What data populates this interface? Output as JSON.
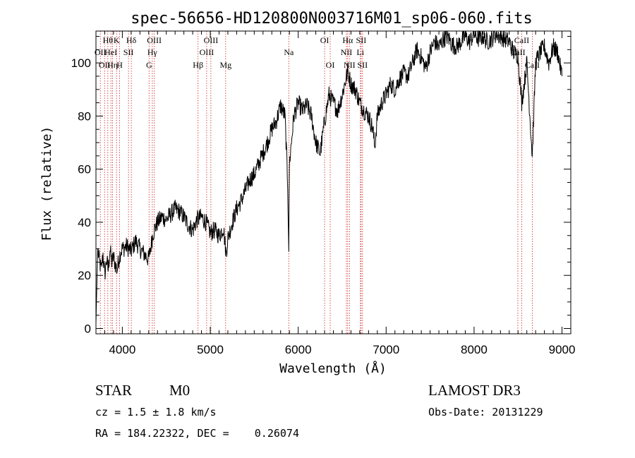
{
  "chart_data": {
    "type": "line",
    "title": "spec-56656-HD120800N003716M01_sp06-060.fits",
    "xlabel": "Wavelength (Å)",
    "ylabel": "Flux (relative)",
    "xlim": [
      3700,
      9100
    ],
    "ylim": [
      -2,
      112
    ],
    "xticks": [
      4000,
      5000,
      6000,
      7000,
      8000,
      9000
    ],
    "xtick_labels": [
      "4000",
      "5000",
      "6000",
      "7000",
      "8000",
      "9000"
    ],
    "yticks": [
      0,
      20,
      40,
      60,
      80,
      100
    ],
    "ytick_labels": [
      "0",
      "20",
      "40",
      "60",
      "80",
      "100"
    ],
    "grid": false,
    "series": [
      {
        "name": "spectrum",
        "x": [
          3700,
          3720,
          3740,
          3760,
          3780,
          3800,
          3820,
          3840,
          3860,
          3880,
          3900,
          3920,
          3940,
          3960,
          3980,
          4000,
          4050,
          4100,
          4150,
          4200,
          4250,
          4300,
          4350,
          4400,
          4450,
          4500,
          4550,
          4600,
          4650,
          4700,
          4750,
          4800,
          4850,
          4900,
          4950,
          5000,
          5050,
          5100,
          5150,
          5180,
          5200,
          5250,
          5300,
          5350,
          5400,
          5450,
          5500,
          5550,
          5600,
          5650,
          5700,
          5750,
          5800,
          5850,
          5880,
          5893,
          5900,
          5950,
          6000,
          6050,
          6100,
          6150,
          6200,
          6250,
          6300,
          6350,
          6400,
          6450,
          6500,
          6550,
          6563,
          6600,
          6650,
          6700,
          6750,
          6800,
          6850,
          6870,
          6900,
          6950,
          7000,
          7050,
          7100,
          7150,
          7200,
          7250,
          7300,
          7350,
          7400,
          7450,
          7500,
          7550,
          7600,
          7650,
          7700,
          7750,
          7800,
          7850,
          7900,
          7950,
          8000,
          8050,
          8100,
          8150,
          8200,
          8250,
          8300,
          8350,
          8400,
          8450,
          8498,
          8542,
          8600,
          8662,
          8700,
          8750,
          8800,
          8850,
          8900,
          8950,
          9000
        ],
        "y": [
          2,
          30,
          25,
          22,
          28,
          20,
          26,
          22,
          30,
          25,
          27,
          24,
          22,
          26,
          29,
          30,
          31,
          29,
          33,
          30,
          28,
          26,
          36,
          40,
          42,
          41,
          43,
          45,
          44,
          42,
          39,
          37,
          41,
          42,
          40,
          36,
          37,
          35,
          38,
          28,
          34,
          40,
          45,
          48,
          52,
          56,
          58,
          62,
          66,
          70,
          75,
          78,
          84,
          80,
          55,
          30,
          62,
          80,
          85,
          82,
          84,
          80,
          70,
          66,
          78,
          88,
          85,
          82,
          88,
          95,
          97,
          92,
          90,
          85,
          82,
          80,
          75,
          68,
          80,
          85,
          88,
          92,
          90,
          94,
          96,
          95,
          100,
          105,
          102,
          98,
          104,
          108,
          106,
          109,
          110,
          107,
          106,
          108,
          110,
          108,
          111,
          109,
          110,
          108,
          109,
          111,
          110,
          109,
          108,
          104,
          103,
          85,
          100,
          65,
          100,
          104,
          106,
          100,
          106,
          104,
          95
        ]
      }
    ],
    "line_markers": [
      {
        "wavelength": 3750,
        "labels": [
          "OII"
        ],
        "row": [
          2
        ]
      },
      {
        "wavelength": 3798,
        "labels": [
          "OII"
        ],
        "row": [
          3
        ]
      },
      {
        "wavelength": 3835,
        "labels": [
          "Hθ"
        ],
        "row": [
          1
        ]
      },
      {
        "wavelength": 3870,
        "labels": [
          "HeI"
        ],
        "row": [
          2
        ]
      },
      {
        "wavelength": 3889,
        "labels": [
          "Hη"
        ],
        "row": [
          3
        ]
      },
      {
        "wavelength": 3934,
        "labels": [
          "K"
        ],
        "row": [
          1
        ]
      },
      {
        "wavelength": 3969,
        "labels": [
          "H"
        ],
        "row": [
          3
        ]
      },
      {
        "wavelength": 4070,
        "labels": [
          "SII"
        ],
        "row": [
          2
        ]
      },
      {
        "wavelength": 4102,
        "labels": [
          "Hδ"
        ],
        "row": [
          1
        ]
      },
      {
        "wavelength": 4304,
        "labels": [
          "G"
        ],
        "row": [
          3
        ]
      },
      {
        "wavelength": 4341,
        "labels": [
          "Hγ"
        ],
        "row": [
          2
        ]
      },
      {
        "wavelength": 4363,
        "labels": [
          "OIII"
        ],
        "row": [
          1
        ]
      },
      {
        "wavelength": 4861,
        "labels": [
          "Hβ"
        ],
        "row": [
          3
        ]
      },
      {
        "wavelength": 4959,
        "labels": [
          "OIII"
        ],
        "row": [
          2
        ]
      },
      {
        "wavelength": 5007,
        "labels": [
          "OIII"
        ],
        "row": [
          1
        ]
      },
      {
        "wavelength": 5175,
        "labels": [
          "Mg"
        ],
        "row": [
          3
        ]
      },
      {
        "wavelength": 5893,
        "labels": [
          "Na"
        ],
        "row": [
          2
        ]
      },
      {
        "wavelength": 6300,
        "labels": [
          "OI"
        ],
        "row": [
          1
        ]
      },
      {
        "wavelength": 6364,
        "labels": [
          "OI"
        ],
        "row": [
          3
        ]
      },
      {
        "wavelength": 6548,
        "labels": [
          "NII"
        ],
        "row": [
          2
        ]
      },
      {
        "wavelength": 6563,
        "labels": [
          "Hα"
        ],
        "row": [
          1
        ]
      },
      {
        "wavelength": 6583,
        "labels": [
          "NII"
        ],
        "row": [
          3
        ]
      },
      {
        "wavelength": 6707,
        "labels": [
          "Li"
        ],
        "row": [
          2
        ]
      },
      {
        "wavelength": 6716,
        "labels": [
          "SII"
        ],
        "row": [
          1
        ]
      },
      {
        "wavelength": 6731,
        "labels": [
          "SII"
        ],
        "row": [
          3
        ]
      },
      {
        "wavelength": 8498,
        "labels": [
          "CaII"
        ],
        "row": [
          2
        ]
      },
      {
        "wavelength": 8542,
        "labels": [
          "CaII"
        ],
        "row": [
          1
        ]
      },
      {
        "wavelength": 8662,
        "labels": [
          "CaII"
        ],
        "row": [
          3
        ]
      }
    ]
  },
  "info": {
    "object_class": "STAR",
    "subclass": "M0",
    "survey": "LAMOST DR3",
    "cz": "cz = 1.5 ± 1.8 km/s",
    "obs_date": "Obs-Date: 20131229",
    "coords": "RA = 184.22322, DEC =    0.26074"
  },
  "colors": {
    "spectrum": "#000000",
    "marker": "#cc2222",
    "axes": "#000000"
  }
}
